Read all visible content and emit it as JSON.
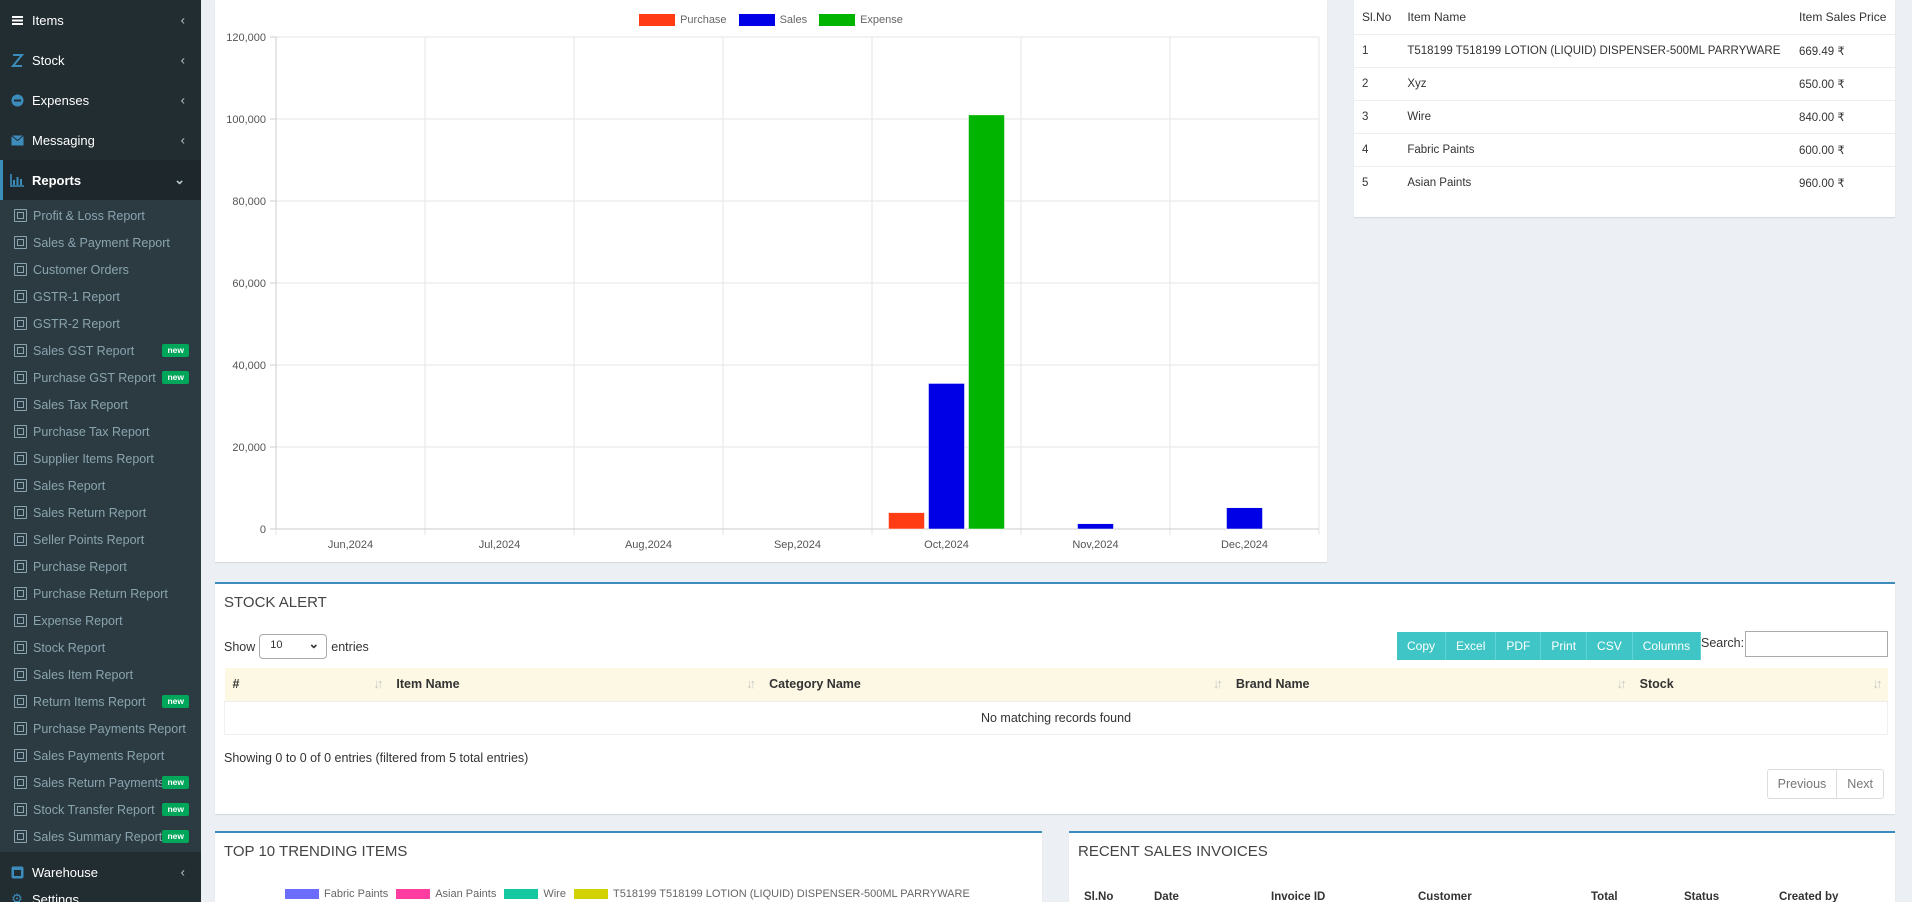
{
  "sidebar": {
    "top_items": [
      {
        "label": "Items",
        "icon": "items-icon"
      },
      {
        "label": "Stock",
        "icon": "stock-icon"
      },
      {
        "label": "Expenses",
        "icon": "expenses-icon"
      },
      {
        "label": "Messaging",
        "icon": "envelope-icon"
      }
    ],
    "reports_label": "Reports",
    "reports": [
      {
        "label": "Profit & Loss Report",
        "badge": ""
      },
      {
        "label": "Sales & Payment Report",
        "badge": ""
      },
      {
        "label": "Customer Orders",
        "badge": ""
      },
      {
        "label": "GSTR-1 Report",
        "badge": ""
      },
      {
        "label": "GSTR-2 Report",
        "badge": ""
      },
      {
        "label": "Sales GST Report",
        "badge": "new"
      },
      {
        "label": "Purchase GST Report",
        "badge": "new"
      },
      {
        "label": "Sales Tax Report",
        "badge": ""
      },
      {
        "label": "Purchase Tax Report",
        "badge": ""
      },
      {
        "label": "Supplier Items Report",
        "badge": ""
      },
      {
        "label": "Sales Report",
        "badge": ""
      },
      {
        "label": "Sales Return Report",
        "badge": ""
      },
      {
        "label": "Seller Points Report",
        "badge": ""
      },
      {
        "label": "Purchase Report",
        "badge": ""
      },
      {
        "label": "Purchase Return Report",
        "badge": ""
      },
      {
        "label": "Expense Report",
        "badge": ""
      },
      {
        "label": "Stock Report",
        "badge": ""
      },
      {
        "label": "Sales Item Report",
        "badge": ""
      },
      {
        "label": "Return Items Report",
        "badge": "new"
      },
      {
        "label": "Purchase Payments Report",
        "badge": ""
      },
      {
        "label": "Sales Payments Report",
        "badge": ""
      },
      {
        "label": "Sales Return Payments",
        "badge": "new"
      },
      {
        "label": "Stock Transfer Report",
        "badge": "new"
      },
      {
        "label": "Sales Summary Report",
        "badge": "new"
      }
    ],
    "warehouse_label": "Warehouse",
    "settings_label": "Settings"
  },
  "chart_data": {
    "type": "bar",
    "categories": [
      "Jun,2024",
      "Jul,2024",
      "Aug,2024",
      "Sep,2024",
      "Oct,2024",
      "Nov,2024",
      "Dec,2024"
    ],
    "series": [
      {
        "name": "Purchase",
        "color": "#ff3c14",
        "values": [
          0,
          0,
          0,
          0,
          4000,
          0,
          0
        ]
      },
      {
        "name": "Sales",
        "color": "#0000e6",
        "values": [
          0,
          0,
          0,
          0,
          35500,
          1300,
          5200
        ]
      },
      {
        "name": "Expense",
        "color": "#00b400",
        "values": [
          0,
          0,
          0,
          0,
          101000,
          0,
          0
        ]
      }
    ],
    "ylim": [
      0,
      120000
    ],
    "yticks": [
      "0",
      "20,000",
      "40,000",
      "60,000",
      "80,000",
      "100,000",
      "120,000"
    ],
    "legend": "top"
  },
  "item_prices": {
    "headers": [
      "Sl.No",
      "Item Name",
      "Item Sales Price"
    ],
    "rows": [
      [
        "1",
        "T518199 T518199 LOTION (LIQUID) DISPENSER-500ML PARRYWARE",
        "669.49 ₹"
      ],
      [
        "2",
        "Xyz",
        "650.00 ₹"
      ],
      [
        "3",
        "Wire",
        "840.00 ₹"
      ],
      [
        "4",
        "Fabric Paints",
        "600.00 ₹"
      ],
      [
        "5",
        "Asian Paints",
        "960.00 ₹"
      ]
    ]
  },
  "stock_alert": {
    "title": "STOCK ALERT",
    "show": "Show",
    "entries_value": "10",
    "entries": "entries",
    "buttons": [
      "Copy",
      "Excel",
      "PDF",
      "Print",
      "CSV",
      "Columns"
    ],
    "search_label": "Search:",
    "columns": [
      "#",
      "Item Name",
      "Category Name",
      "Brand Name",
      "Stock"
    ],
    "empty": "No matching records found",
    "showing": "Showing 0 to 0 of 0 entries (filtered from 5 total entries)",
    "prev": "Previous",
    "next": "Next"
  },
  "trending": {
    "title": "TOP 10 TRENDING ITEMS",
    "legend": [
      {
        "name": "Fabric Paints",
        "color": "#6c6cff"
      },
      {
        "name": "Asian Paints",
        "color": "#ff3ca0"
      },
      {
        "name": "Wire",
        "color": "#14c8a0"
      },
      {
        "name": "T518199 T518199 LOTION (LIQUID) DISPENSER-500ML PARRYWARE",
        "color": "#d2d200"
      }
    ]
  },
  "recent": {
    "title": "RECENT SALES INVOICES",
    "headers": [
      "Sl.No",
      "Date",
      "Invoice ID",
      "Customer",
      "Total",
      "Status",
      "Created by"
    ]
  }
}
